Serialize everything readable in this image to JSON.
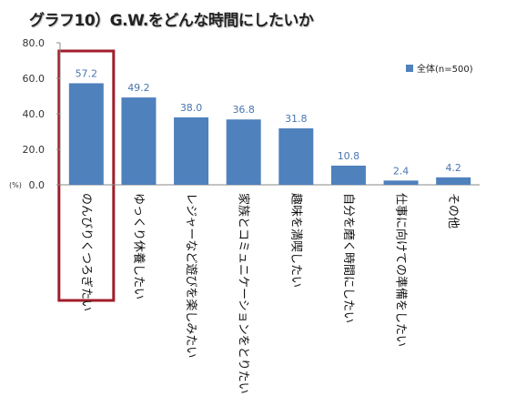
{
  "chart_data": {
    "type": "bar",
    "title": "グラフ10）G.W.をどんな時間にしたいか",
    "ylabel": "(%)",
    "ylim": [
      0,
      80
    ],
    "yticks": [
      "0.0",
      "20.0",
      "40.0",
      "60.0",
      "80.0"
    ],
    "categories": [
      "のんびりくつろぎたい",
      "ゆっくり休養したい",
      "レジャーなど遊びを楽しみたい",
      "家族とコミュニケーションをとりたい",
      "趣味を満喫したい",
      "自分を磨く時間にしたい",
      "仕事に向けての準備をしたい",
      "その他"
    ],
    "series": [
      {
        "name": "全体(n=500)",
        "values": [
          57.2,
          49.2,
          38.0,
          36.8,
          31.8,
          10.8,
          2.4,
          4.2
        ],
        "labels": [
          "57.2",
          "49.2",
          "38.0",
          "36.8",
          "31.8",
          "10.8",
          "2.4",
          "4.2"
        ]
      }
    ],
    "highlighted_category": "のんびりくつろぎたい",
    "legend_position": "top-right",
    "grid": false,
    "colors": {
      "bar": "#4f81bd",
      "value_label": "#4a76b0",
      "highlight_box": "#a11d2a",
      "axis": "#888888"
    }
  }
}
